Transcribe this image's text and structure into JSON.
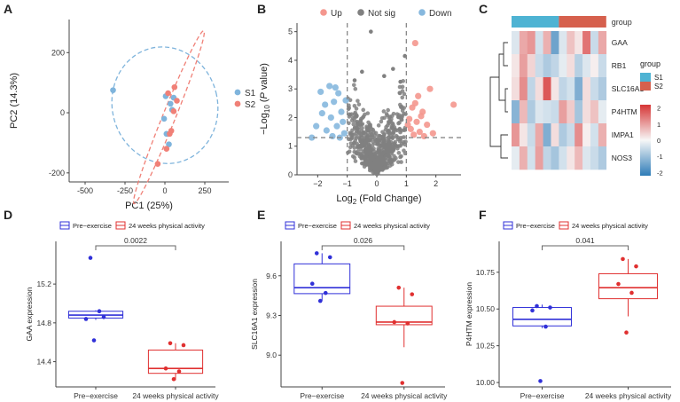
{
  "panels": {
    "A": {
      "label": "A",
      "chart_data": {
        "type": "scatter",
        "xlabel": "PC1 (25%)",
        "ylabel": "PC2 (14.3%)",
        "xlim": [
          -600,
          400
        ],
        "ylim": [
          -230,
          310
        ],
        "xticks": [
          -500,
          -250,
          0,
          250
        ],
        "yticks": [
          -200,
          0,
          200
        ],
        "legend": [
          "S1",
          "S2"
        ],
        "series": [
          {
            "name": "S1",
            "color": "#7FB4DC",
            "points": [
              [
                -325,
                75
              ],
              [
                5,
                55
              ],
              [
                35,
                30
              ],
              [
                -5,
                -20
              ],
              [
                55,
                50
              ],
              [
                10,
                -70
              ],
              [
                25,
                -105
              ],
              [
                45,
                10
              ]
            ]
          },
          {
            "name": "S2",
            "color": "#F08077",
            "points": [
              [
                20,
                65
              ],
              [
                75,
                40
              ],
              [
                60,
                85
              ],
              [
                -45,
                -170
              ],
              [
                30,
                -70
              ],
              [
                55,
                5
              ],
              [
                40,
                -60
              ],
              [
                10,
                -120
              ]
            ]
          }
        ],
        "ellipses": [
          {
            "series": "S1",
            "center": [
              0,
              25
            ],
            "rx": 330,
            "ry": 195,
            "angle_deg": -14
          },
          {
            "series": "S2",
            "center": [
              25,
              -15
            ],
            "rx": 40,
            "ry": 310,
            "angle_deg": 22
          }
        ]
      }
    },
    "B": {
      "label": "B",
      "chart_data": {
        "type": "scatter",
        "xlabel_parts": [
          "Log",
          "2",
          " (Fold Change)"
        ],
        "ylabel_parts": [
          "−Log",
          "10",
          " (",
          "P",
          " value)"
        ],
        "xlim": [
          -2.7,
          2.85
        ],
        "ylim": [
          0,
          5.3
        ],
        "xticks": [
          -2,
          -1,
          0,
          1,
          2
        ],
        "yticks": [
          0,
          1,
          2,
          3,
          4,
          5
        ],
        "legend": [
          {
            "name": "Up",
            "color": "#F4978E"
          },
          {
            "name": "Not sig",
            "color": "#808080"
          },
          {
            "name": "Down",
            "color": "#86B8DE"
          }
        ],
        "thresholds": {
          "fold_change": [
            -1,
            1
          ],
          "p_value_line": 1.3
        },
        "up_points": [
          [
            2.6,
            2.45
          ],
          [
            1.3,
            4.6
          ],
          [
            1.8,
            3.0
          ],
          [
            1.4,
            2.75
          ],
          [
            1.2,
            2.35
          ],
          [
            1.55,
            2.2
          ],
          [
            1.1,
            1.95
          ],
          [
            1.35,
            1.85
          ],
          [
            1.7,
            1.75
          ],
          [
            1.15,
            1.6
          ],
          [
            1.45,
            1.5
          ],
          [
            1.25,
            1.4
          ],
          [
            1.6,
            1.35
          ],
          [
            1.9,
            1.45
          ],
          [
            1.05,
            1.75
          ],
          [
            1.5,
            2.05
          ],
          [
            1.3,
            2.5
          ]
        ],
        "down_points": [
          [
            -2.2,
            1.3
          ],
          [
            -1.6,
            3.1
          ],
          [
            -1.9,
            2.9
          ],
          [
            -1.3,
            2.85
          ],
          [
            -1.45,
            2.55
          ],
          [
            -1.75,
            2.45
          ],
          [
            -1.2,
            2.2
          ],
          [
            -1.55,
            2.0
          ],
          [
            -1.15,
            1.85
          ],
          [
            -1.35,
            1.7
          ],
          [
            -1.7,
            1.55
          ],
          [
            -1.1,
            1.45
          ],
          [
            -1.5,
            1.35
          ],
          [
            -1.25,
            1.3
          ],
          [
            -2.05,
            1.7
          ],
          [
            -1.85,
            2.15
          ],
          [
            -1.05,
            2.6
          ],
          [
            -1.4,
            3.05
          ]
        ],
        "notsig_extra_points": [
          [
            -0.2,
            5.0
          ],
          [
            0.95,
            4.15
          ],
          [
            0.55,
            3.7
          ],
          [
            -0.5,
            3.6
          ],
          [
            0.25,
            3.45
          ],
          [
            -0.75,
            3.3
          ],
          [
            0.8,
            3.25
          ]
        ]
      }
    },
    "C": {
      "label": "C",
      "chart_data": {
        "type": "heatmap",
        "group_header_label": "group",
        "rows": [
          "GAA",
          "RB1",
          "SLC16A1",
          "P4HTM",
          "IMPA1",
          "NOS3"
        ],
        "groups": [
          {
            "name": "S1",
            "color": "#4EB3D3",
            "columns": 6
          },
          {
            "name": "S2",
            "color": "#D6604D",
            "columns": 6
          }
        ],
        "values": [
          [
            -0.3,
            0.9,
            1.1,
            -0.4,
            0.8,
            -1.5,
            -0.3,
            0.6,
            0.2,
            1.5,
            -0.5,
            0.9
          ],
          [
            0.2,
            1.0,
            0.4,
            -0.5,
            -0.8,
            -0.6,
            -0.2,
            0.3,
            -0.7,
            -0.3,
            0.1,
            -0.5
          ],
          [
            0.3,
            1.2,
            -0.6,
            0.3,
            1.8,
            0.2,
            -0.6,
            -0.4,
            -1.3,
            0.3,
            -0.5,
            -0.8
          ],
          [
            -1.2,
            0.7,
            -0.8,
            -0.3,
            -0.4,
            -0.5,
            1.0,
            0.5,
            -0.9,
            0.3,
            0.6,
            -0.2
          ],
          [
            1.1,
            0.2,
            -0.5,
            0.9,
            -1.3,
            0.3,
            -0.8,
            -0.5,
            1.2,
            0.1,
            -0.4,
            0.8
          ],
          [
            -0.2,
            0.8,
            -0.4,
            1.0,
            -0.6,
            -0.9,
            -0.4,
            0.2,
            0.7,
            -0.3,
            -0.5,
            -0.8
          ]
        ],
        "legend_title": "group",
        "legend_groups": [
          "S1",
          "S2"
        ],
        "scale_ticks": [
          "2",
          "1",
          "0",
          "-1",
          "-2"
        ],
        "scale_range": [
          -2.2,
          2.2
        ]
      }
    },
    "D": {
      "label": "D",
      "chart_data": {
        "type": "box",
        "ylabel": "GAA expression",
        "ylim": [
          14.14,
          15.64
        ],
        "yticks": [
          14.4,
          14.8,
          15.2
        ],
        "categories": [
          "Pre−exercise",
          "24 weeks physical activity"
        ],
        "legend": [
          "Pre−exercise",
          "24 weeks physical activity"
        ],
        "p_value": "0.0022",
        "boxes": [
          {
            "color": "#3030D8",
            "whisker_low": 14.83,
            "q1": 14.85,
            "median": 14.88,
            "q3": 14.92,
            "whisker_high": 14.93,
            "points": [
              15.47,
              14.86,
              14.84,
              14.92,
              14.62
            ]
          },
          {
            "color": "#E03030",
            "whisker_low": 14.21,
            "q1": 14.28,
            "median": 14.33,
            "q3": 14.52,
            "whisker_high": 14.59,
            "points": [
              14.59,
              14.57,
              14.33,
              14.3,
              14.22
            ]
          }
        ]
      }
    },
    "E": {
      "label": "E",
      "chart_data": {
        "type": "box",
        "ylabel": "SLC16A1 expression",
        "ylim": [
          8.76,
          9.86
        ],
        "yticks": [
          9.0,
          9.3,
          9.6
        ],
        "categories": [
          "Pre−exercise",
          "24 weeks physical activity"
        ],
        "legend": [
          "Pre−exercise",
          "24 weeks physical activity"
        ],
        "p_value": "0.026",
        "boxes": [
          {
            "color": "#3030D8",
            "whisker_low": 9.41,
            "q1": 9.465,
            "median": 9.51,
            "q3": 9.69,
            "whisker_high": 9.77,
            "points": [
              9.77,
              9.74,
              9.54,
              9.47,
              9.41
            ]
          },
          {
            "color": "#E03030",
            "whisker_low": 9.06,
            "q1": 9.23,
            "median": 9.25,
            "q3": 9.37,
            "whisker_high": 9.51,
            "points": [
              9.51,
              9.46,
              9.25,
              9.24,
              8.79
            ]
          }
        ]
      }
    },
    "F": {
      "label": "F",
      "chart_data": {
        "type": "box",
        "ylabel": "P4HTM expression",
        "ylim": [
          9.97,
          10.96
        ],
        "yticks": [
          10.0,
          10.25,
          10.5,
          10.75
        ],
        "categories": [
          "Pre−exercise",
          "24 weeks physical activity"
        ],
        "legend": [
          "Pre−exercise",
          "24 weeks physical activity"
        ],
        "p_value": "0.041",
        "boxes": [
          {
            "color": "#3030D8",
            "whisker_low": 10.37,
            "q1": 10.385,
            "median": 10.43,
            "q3": 10.51,
            "whisker_high": 10.53,
            "points": [
              10.52,
              10.51,
              10.49,
              10.38,
              10.01
            ]
          },
          {
            "color": "#E03030",
            "whisker_low": 10.45,
            "q1": 10.57,
            "median": 10.645,
            "q3": 10.74,
            "whisker_high": 10.84,
            "points": [
              10.84,
              10.79,
              10.67,
              10.61,
              10.34
            ]
          }
        ]
      }
    }
  }
}
